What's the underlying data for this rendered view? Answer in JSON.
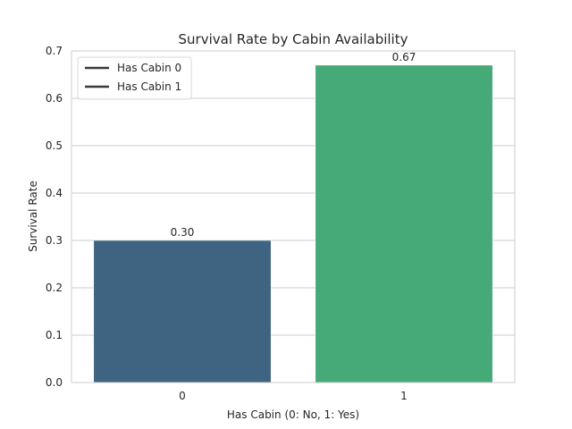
{
  "chart_data": {
    "type": "bar",
    "title": "Survival Rate by Cabin Availability",
    "xlabel": "Has Cabin (0: No, 1: Yes)",
    "ylabel": "Survival Rate",
    "categories": [
      "0",
      "1"
    ],
    "values": [
      0.3,
      0.67
    ],
    "value_labels": [
      "0.30",
      "0.67"
    ],
    "ylim": [
      0,
      0.7
    ],
    "yticks": [
      0.0,
      0.1,
      0.2,
      0.3,
      0.4,
      0.5,
      0.6,
      0.7
    ],
    "ytick_labels": [
      "0.0",
      "0.1",
      "0.2",
      "0.3",
      "0.4",
      "0.5",
      "0.6",
      "0.7"
    ],
    "bar_colors": [
      "#3e6482",
      "#46aa78"
    ],
    "grid": "y",
    "legend": {
      "placement": "top-left",
      "entries": [
        "Has Cabin 0",
        "Has Cabin 1"
      ],
      "line_color": "#3a3a3a"
    }
  }
}
